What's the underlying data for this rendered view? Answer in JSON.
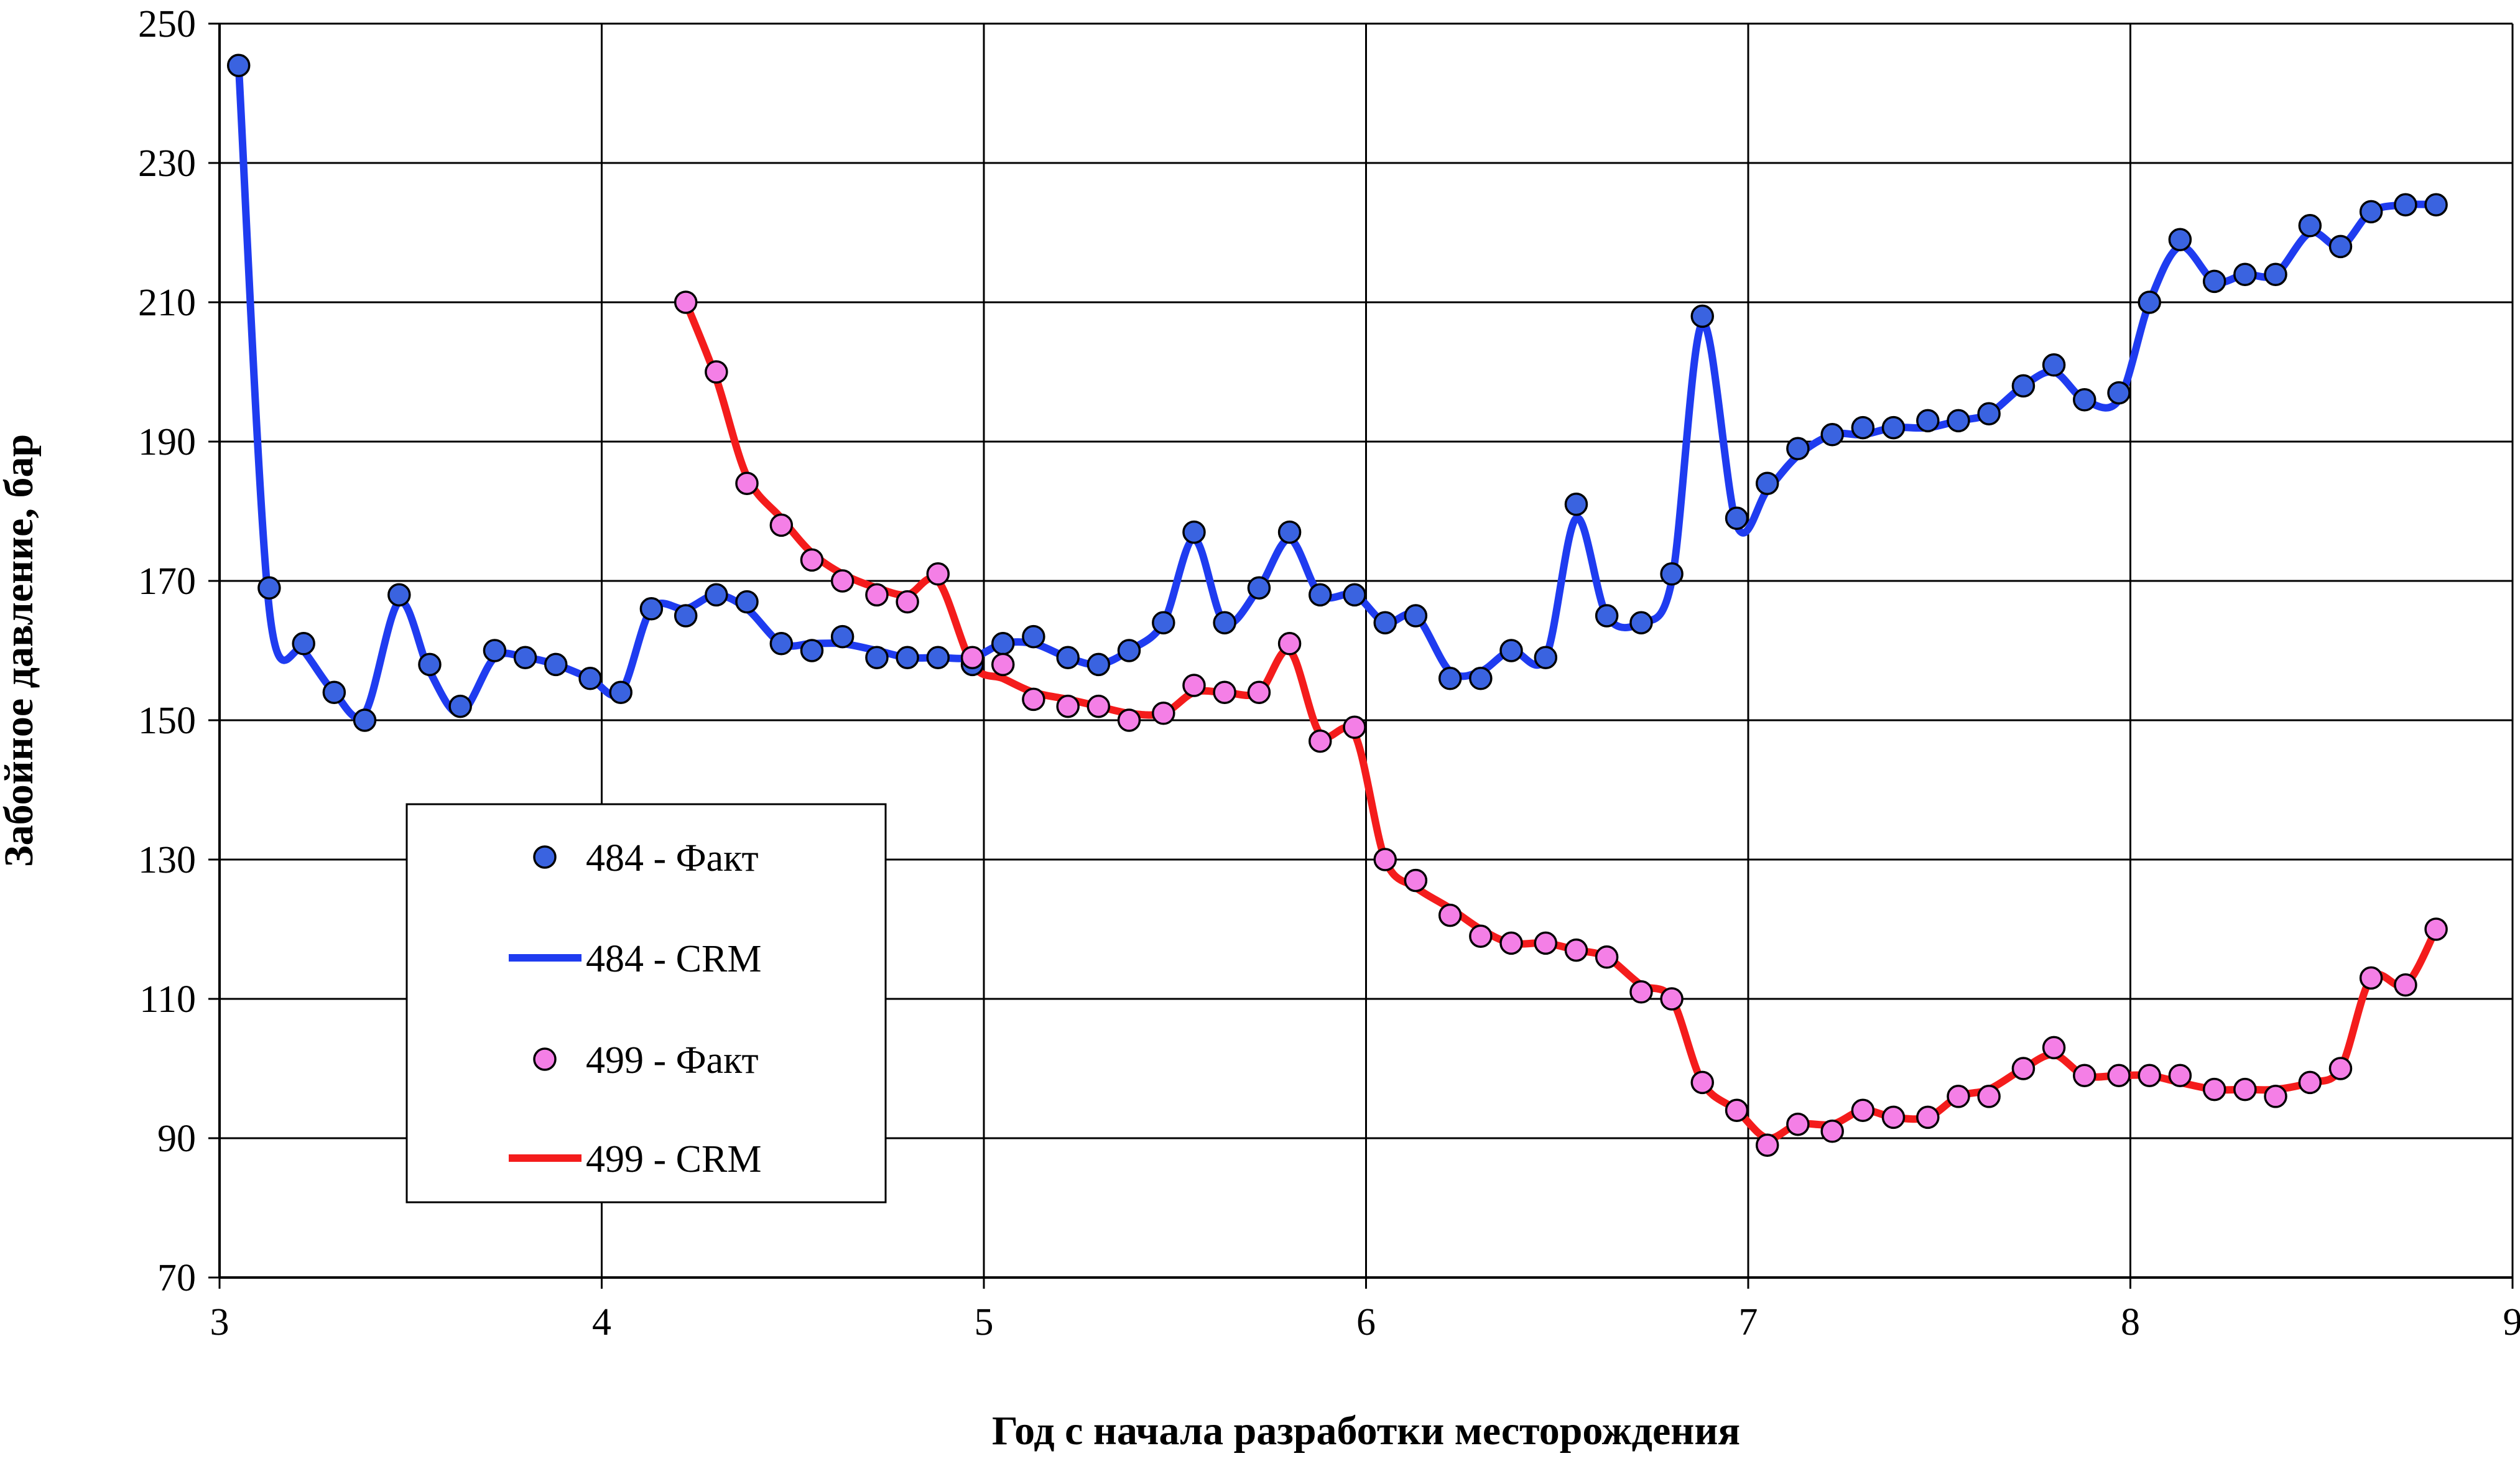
{
  "chart_data": {
    "type": "line",
    "xlabel": "Год с начала разработки месторождения",
    "ylabel": "Забойное давление, бар",
    "xlim": [
      3,
      9
    ],
    "ylim": [
      70,
      250
    ],
    "x_ticks": [
      3,
      4,
      5,
      6,
      7,
      8,
      9
    ],
    "y_ticks": [
      70,
      90,
      110,
      130,
      150,
      170,
      190,
      210,
      230,
      250
    ],
    "grid": true,
    "legend_placement": "bottom-left",
    "series": [
      {
        "name": "484 - Факт",
        "kind": "points",
        "color": "#3a63e0",
        "x": [
          3.05,
          3.13,
          3.22,
          3.3,
          3.38,
          3.47,
          3.55,
          3.63,
          3.72,
          3.8,
          3.88,
          3.97,
          4.05,
          4.13,
          4.22,
          4.3,
          4.38,
          4.47,
          4.55,
          4.63,
          4.72,
          4.8,
          4.88,
          4.97,
          5.05,
          5.13,
          5.22,
          5.3,
          5.38,
          5.47,
          5.55,
          5.63,
          5.72,
          5.8,
          5.88,
          5.97,
          6.05,
          6.13,
          6.22,
          6.3,
          6.38,
          6.47,
          6.55,
          6.63,
          6.72,
          6.8,
          6.88,
          6.97,
          7.05,
          7.13,
          7.22,
          7.3,
          7.38,
          7.47,
          7.55,
          7.63,
          7.72,
          7.8,
          7.88,
          7.97,
          8.05,
          8.13,
          8.22,
          8.3,
          8.38,
          8.47,
          8.55,
          8.63,
          8.72,
          8.8
        ],
        "y": [
          244,
          169,
          161,
          154,
          150,
          168,
          158,
          152,
          160,
          159,
          158,
          156,
          154,
          166,
          165,
          168,
          167,
          161,
          160,
          162,
          159,
          159,
          159,
          158,
          161,
          162,
          159,
          158,
          160,
          164,
          177,
          164,
          169,
          177,
          168,
          168,
          164,
          165,
          156,
          156,
          160,
          159,
          181,
          165,
          164,
          171,
          208,
          179,
          184,
          189,
          191,
          192,
          192,
          193,
          193,
          194,
          198,
          201,
          196,
          197,
          210,
          219,
          213,
          214,
          214,
          221,
          218,
          223,
          224,
          224
        ]
      },
      {
        "name": "484 - CRM",
        "kind": "line",
        "color": "#1f3cf0",
        "x": [
          3.05,
          3.13,
          3.22,
          3.3,
          3.38,
          3.47,
          3.55,
          3.63,
          3.72,
          3.8,
          3.88,
          3.97,
          4.05,
          4.13,
          4.22,
          4.3,
          4.38,
          4.47,
          4.55,
          4.63,
          4.72,
          4.8,
          4.88,
          4.97,
          5.05,
          5.13,
          5.22,
          5.3,
          5.38,
          5.47,
          5.55,
          5.63,
          5.72,
          5.8,
          5.88,
          5.97,
          6.05,
          6.13,
          6.22,
          6.3,
          6.38,
          6.47,
          6.55,
          6.63,
          6.72,
          6.8,
          6.88,
          6.97,
          7.05,
          7.13,
          7.22,
          7.3,
          7.38,
          7.47,
          7.55,
          7.63,
          7.72,
          7.8,
          7.88,
          7.97,
          8.05,
          8.13,
          8.22,
          8.3,
          8.38,
          8.47,
          8.55,
          8.63,
          8.72,
          8.8
        ],
        "y": [
          244,
          166,
          160,
          154,
          151,
          167,
          157,
          151,
          159,
          159,
          158,
          156,
          154,
          166,
          166,
          168,
          166,
          161,
          161,
          161,
          160,
          159,
          159,
          159,
          161,
          161,
          159,
          158,
          160,
          164,
          176,
          164,
          169,
          176,
          168,
          168,
          164,
          165,
          157,
          157,
          160,
          159,
          179,
          165,
          164,
          170,
          207,
          178,
          183,
          188,
          191,
          191,
          192,
          192,
          193,
          194,
          198,
          200,
          196,
          196,
          210,
          218,
          213,
          214,
          214,
          220,
          218,
          223,
          224,
          224
        ]
      },
      {
        "name": "499 - Факт",
        "kind": "points",
        "color": "#f47fe6",
        "x": [
          4.22,
          4.3,
          4.38,
          4.47,
          4.55,
          4.63,
          4.72,
          4.8,
          4.88,
          4.97,
          5.05,
          5.13,
          5.22,
          5.3,
          5.38,
          5.47,
          5.55,
          5.63,
          5.72,
          5.8,
          5.88,
          5.97,
          6.05,
          6.13,
          6.22,
          6.3,
          6.38,
          6.47,
          6.55,
          6.63,
          6.72,
          6.8,
          6.88,
          6.97,
          7.05,
          7.13,
          7.22,
          7.3,
          7.38,
          7.47,
          7.55,
          7.63,
          7.72,
          7.8,
          7.88,
          7.97,
          8.05,
          8.13,
          8.22,
          8.3,
          8.38,
          8.47,
          8.55,
          8.63,
          8.72,
          8.8
        ],
        "y": [
          210,
          200,
          184,
          178,
          173,
          170,
          168,
          167,
          171,
          159,
          158,
          153,
          152,
          152,
          150,
          151,
          155,
          154,
          154,
          161,
          147,
          149,
          130,
          127,
          122,
          119,
          118,
          118,
          117,
          116,
          111,
          110,
          98,
          94,
          89,
          92,
          91,
          94,
          93,
          93,
          96,
          96,
          100,
          103,
          99,
          99,
          99,
          99,
          97,
          97,
          96,
          98,
          100,
          113,
          112,
          120
        ]
      },
      {
        "name": "499 - CRM",
        "kind": "line",
        "color": "#f41c1c",
        "x": [
          4.22,
          4.3,
          4.38,
          4.47,
          4.55,
          4.63,
          4.72,
          4.8,
          4.88,
          4.97,
          5.05,
          5.13,
          5.22,
          5.3,
          5.38,
          5.47,
          5.55,
          5.63,
          5.72,
          5.8,
          5.88,
          5.97,
          6.05,
          6.13,
          6.22,
          6.3,
          6.38,
          6.47,
          6.55,
          6.63,
          6.72,
          6.8,
          6.88,
          6.97,
          7.05,
          7.13,
          7.22,
          7.3,
          7.38,
          7.47,
          7.55,
          7.63,
          7.72,
          7.8,
          7.88,
          7.97,
          8.05,
          8.13,
          8.22,
          8.3,
          8.38,
          8.47,
          8.55,
          8.63,
          8.72,
          8.8
        ],
        "y": [
          210,
          199,
          185,
          179,
          174,
          171,
          169,
          168,
          170,
          158,
          156,
          154,
          153,
          152,
          151,
          151,
          154,
          154,
          154,
          160,
          148,
          148,
          130,
          126,
          123,
          120,
          118,
          118,
          117,
          116,
          112,
          110,
          98,
          94,
          90,
          92,
          92,
          94,
          93,
          93,
          96,
          97,
          100,
          102,
          99,
          99,
          99,
          98,
          97,
          97,
          97,
          98,
          100,
          113,
          112,
          120
        ]
      }
    ]
  }
}
